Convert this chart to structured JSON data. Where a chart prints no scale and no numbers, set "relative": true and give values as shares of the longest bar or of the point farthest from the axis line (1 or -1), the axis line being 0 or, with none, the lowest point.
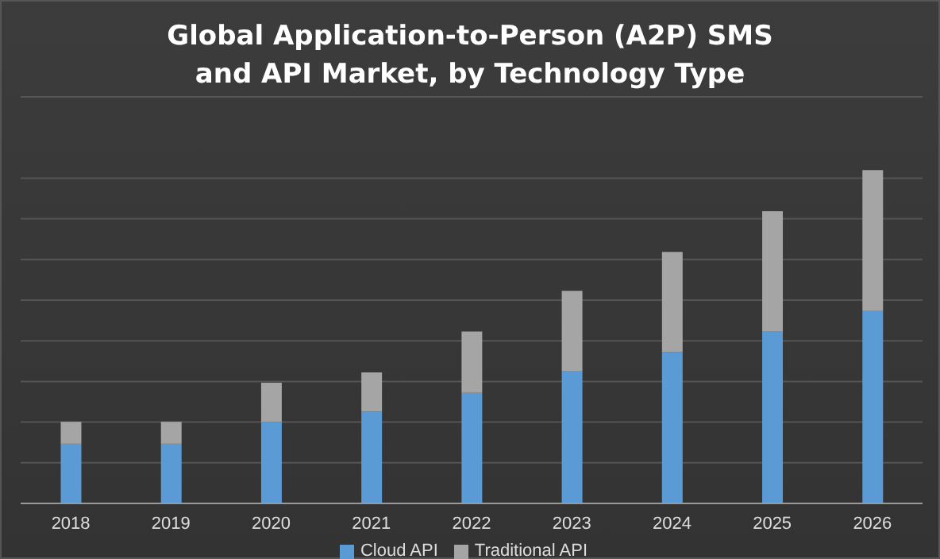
{
  "chart_data": {
    "type": "bar",
    "title": "Global Application-to-Person (A2P) SMS and API Market, by Technology Type",
    "categories": [
      "2018",
      "2019",
      "2020",
      "2021",
      "2022",
      "2023",
      "2024",
      "2025",
      "2026"
    ],
    "stacked": true,
    "relative": true,
    "grid": "y",
    "legend": "bottom",
    "series": [
      {
        "name": "Cloud API",
        "color": "#5b9bd5",
        "values": [
          0.179,
          0.179,
          0.245,
          0.276,
          0.332,
          0.398,
          0.454,
          0.515,
          0.577
        ]
      },
      {
        "name": "Traditional API",
        "color": "#a5a5a5",
        "values": [
          0.066,
          0.066,
          0.117,
          0.117,
          0.184,
          0.24,
          0.301,
          0.362,
          0.423
        ]
      }
    ]
  }
}
